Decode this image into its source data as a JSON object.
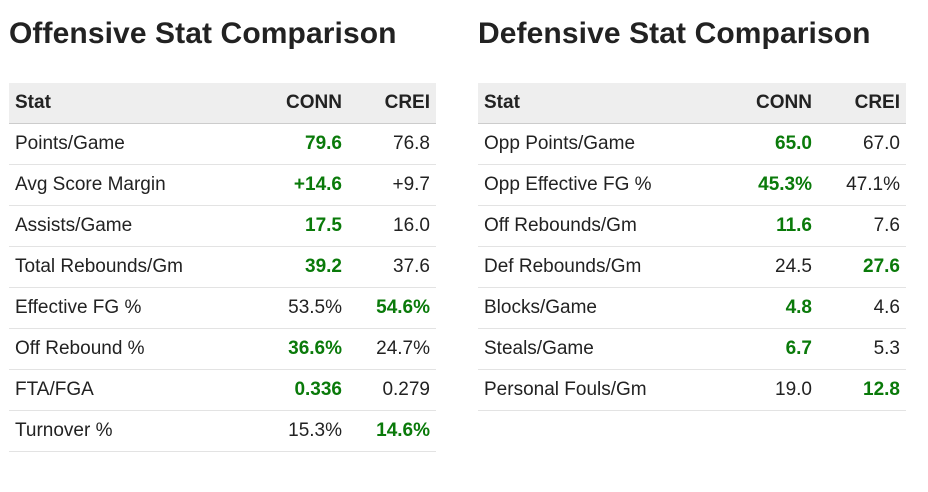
{
  "offensive": {
    "title": "Offensive Stat Comparison",
    "headers": [
      "Stat",
      "CONN",
      "CREI"
    ],
    "rows": [
      {
        "stat": "Points/Game",
        "conn": "79.6",
        "crei": "76.8",
        "better": "conn"
      },
      {
        "stat": "Avg Score Margin",
        "conn": "+14.6",
        "crei": "+9.7",
        "better": "conn"
      },
      {
        "stat": "Assists/Game",
        "conn": "17.5",
        "crei": "16.0",
        "better": "conn"
      },
      {
        "stat": "Total Rebounds/Gm",
        "conn": "39.2",
        "crei": "37.6",
        "better": "conn"
      },
      {
        "stat": "Effective FG %",
        "conn": "53.5%",
        "crei": "54.6%",
        "better": "crei"
      },
      {
        "stat": "Off Rebound %",
        "conn": "36.6%",
        "crei": "24.7%",
        "better": "conn"
      },
      {
        "stat": "FTA/FGA",
        "conn": "0.336",
        "crei": "0.279",
        "better": "conn"
      },
      {
        "stat": "Turnover %",
        "conn": "15.3%",
        "crei": "14.6%",
        "better": "crei"
      }
    ]
  },
  "defensive": {
    "title": "Defensive Stat Comparison",
    "headers": [
      "Stat",
      "CONN",
      "CREI"
    ],
    "rows": [
      {
        "stat": "Opp Points/Game",
        "conn": "65.0",
        "crei": "67.0",
        "better": "conn"
      },
      {
        "stat": "Opp Effective FG %",
        "conn": "45.3%",
        "crei": "47.1%",
        "better": "conn"
      },
      {
        "stat": "Off Rebounds/Gm",
        "conn": "11.6",
        "crei": "7.6",
        "better": "conn"
      },
      {
        "stat": "Def Rebounds/Gm",
        "conn": "24.5",
        "crei": "27.6",
        "better": "crei"
      },
      {
        "stat": "Blocks/Game",
        "conn": "4.8",
        "crei": "4.6",
        "better": "conn"
      },
      {
        "stat": "Steals/Game",
        "conn": "6.7",
        "crei": "5.3",
        "better": "conn"
      },
      {
        "stat": "Personal Fouls/Gm",
        "conn": "19.0",
        "crei": "12.8",
        "better": "crei"
      }
    ]
  },
  "colors": {
    "better_value": "#0a7a0a",
    "header_background": "#eeeeee",
    "text": "#222222"
  }
}
